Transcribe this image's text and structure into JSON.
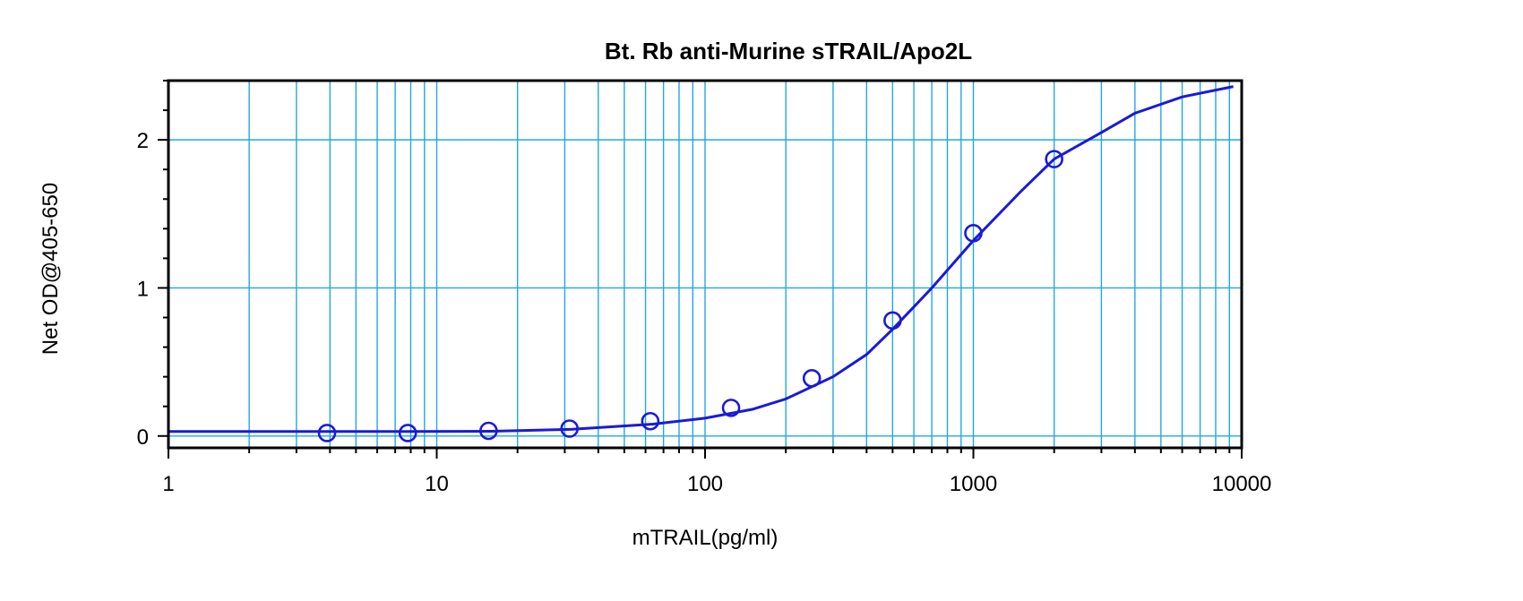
{
  "chart_data": {
    "type": "scatter",
    "title": "Bt. Rb anti-Murine sTRAIL/Apo2L",
    "xlabel": "mTRAIL(pg/ml)",
    "ylabel": "Net OD@405-650",
    "x_scale": "log",
    "xlim": [
      1,
      10000
    ],
    "ylim": [
      -0.08,
      2.4
    ],
    "x_ticks": [
      "1",
      "10",
      "100",
      "1000",
      "10000"
    ],
    "y_ticks": [
      "0",
      "1",
      "2"
    ],
    "grid": true,
    "points": {
      "x": [
        3.9,
        7.8,
        15.6,
        31.25,
        62.5,
        125,
        250,
        500,
        1000,
        2000
      ],
      "y": [
        0.02,
        0.02,
        0.035,
        0.05,
        0.1,
        0.19,
        0.39,
        0.78,
        1.37,
        1.87
      ]
    },
    "fit_curve": {
      "x": [
        1,
        2,
        4,
        8,
        16,
        32,
        64,
        100,
        150,
        200,
        300,
        400,
        500,
        700,
        1000,
        1500,
        2000,
        3000,
        4000,
        6000,
        9300
      ],
      "y": [
        0.03,
        0.03,
        0.03,
        0.03,
        0.032,
        0.045,
        0.08,
        0.12,
        0.18,
        0.25,
        0.4,
        0.55,
        0.72,
        1.0,
        1.32,
        1.65,
        1.87,
        2.05,
        2.18,
        2.29,
        2.36
      ]
    },
    "colors": {
      "series": "#1a1ad8",
      "grid": "#20a8e0",
      "frame": "#000000"
    }
  }
}
